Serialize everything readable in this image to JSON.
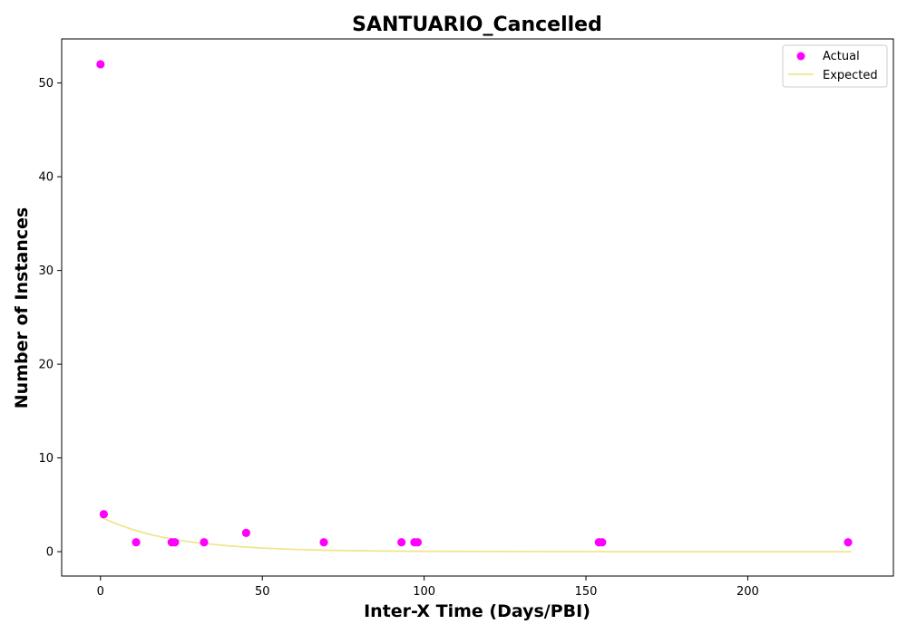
{
  "chart_data": {
    "type": "scatter",
    "title": "SANTUARIO_Cancelled",
    "xlabel": "Inter-X Time (Days/PBI)",
    "ylabel": "Number of Instances",
    "xlim": [
      -12,
      245
    ],
    "ylim": [
      -2.6,
      54.7
    ],
    "xticks": [
      0,
      50,
      100,
      150,
      200
    ],
    "yticks": [
      0,
      10,
      20,
      30,
      40,
      50
    ],
    "grid": false,
    "legend": "top-right",
    "series": [
      {
        "name": "Actual",
        "kind": "scatter",
        "color": "#ff00ff",
        "points": [
          [
            0,
            52
          ],
          [
            1,
            4
          ],
          [
            11,
            1
          ],
          [
            22,
            1
          ],
          [
            23,
            1
          ],
          [
            32,
            1
          ],
          [
            45,
            2
          ],
          [
            69,
            1
          ],
          [
            93,
            1
          ],
          [
            97,
            1
          ],
          [
            98,
            1
          ],
          [
            154,
            1
          ],
          [
            155,
            1
          ],
          [
            231,
            1
          ]
        ]
      },
      {
        "name": "Expected",
        "kind": "line",
        "color": "#f0e68c",
        "points": [
          [
            0,
            3.7
          ],
          [
            5,
            2.95
          ],
          [
            10,
            2.35
          ],
          [
            15,
            1.86
          ],
          [
            20,
            1.48
          ],
          [
            25,
            1.18
          ],
          [
            30,
            0.94
          ],
          [
            40,
            0.6
          ],
          [
            50,
            0.38
          ],
          [
            60,
            0.24
          ],
          [
            70,
            0.15
          ],
          [
            80,
            0.1
          ],
          [
            90,
            0.06
          ],
          [
            100,
            0.04
          ],
          [
            120,
            0.02
          ],
          [
            140,
            0.01
          ],
          [
            160,
            0.0
          ],
          [
            180,
            0.0
          ],
          [
            200,
            0.0
          ],
          [
            232,
            0.0
          ]
        ]
      }
    ]
  }
}
